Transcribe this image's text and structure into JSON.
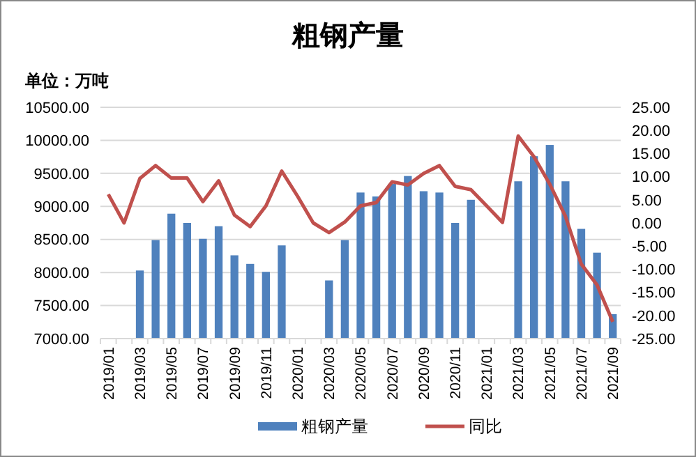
{
  "chart_data": {
    "type": "bar",
    "title": "粗钢产量",
    "subtitle": "单位：万吨",
    "categories": [
      "2019/01",
      null,
      "2019/03",
      null,
      "2019/05",
      null,
      "2019/07",
      null,
      "2019/09",
      null,
      "2019/11",
      null,
      "2020/01",
      null,
      "2020/03",
      null,
      "2020/05",
      null,
      "2020/07",
      null,
      "2020/09",
      null,
      "2020/11",
      null,
      "2021/01",
      null,
      "2021/03",
      null,
      "2021/05",
      null,
      "2021/07",
      null,
      "2021/09"
    ],
    "series": [
      {
        "name": "粗钢产量",
        "color": "#4f81bd",
        "values": [
          null,
          null,
          8030,
          8490,
          8890,
          8750,
          8510,
          8700,
          8260,
          8130,
          8010,
          8410,
          null,
          null,
          7880,
          8490,
          9210,
          9150,
          9340,
          9460,
          9230,
          9210,
          8750,
          9100,
          null,
          null,
          9380,
          9760,
          9930,
          9380,
          8660,
          8300,
          7370
        ]
      },
      {
        "name": "同比",
        "type": "line",
        "axis": "y2",
        "color": "#c0504d",
        "values": [
          6.2,
          0,
          9.6,
          12.4,
          9.7,
          9.7,
          4.6,
          9.1,
          1.7,
          -0.8,
          3.7,
          11.2,
          5.8,
          0,
          -2.1,
          0.2,
          3.7,
          4.4,
          8.9,
          8.2,
          10.7,
          12.4,
          7.9,
          7.2,
          3.7,
          0.1,
          18.8,
          14.3,
          8.4,
          1.4,
          -8.9,
          -13.4,
          -21.4
        ]
      }
    ],
    "ylim": [
      7000,
      10500
    ],
    "yticks": [
      {
        "value": 7000,
        "label": "7000.00"
      },
      {
        "value": 7500,
        "label": "7500.00"
      },
      {
        "value": 8000,
        "label": "8000.00"
      },
      {
        "value": 8500,
        "label": "8500.00"
      },
      {
        "value": 9000,
        "label": "9000.00"
      },
      {
        "value": 9500,
        "label": "9500.00"
      },
      {
        "value": 10000,
        "label": "10000.00"
      },
      {
        "value": 10500,
        "label": "10500.00"
      }
    ],
    "y2lim": [
      -25,
      25
    ],
    "y2ticks": [
      {
        "value": -25,
        "label": "-25.00"
      },
      {
        "value": -20,
        "label": "-20.00"
      },
      {
        "value": -15,
        "label": "-15.00"
      },
      {
        "value": -10,
        "label": "-10.00"
      },
      {
        "value": -5,
        "label": "-5.00"
      },
      {
        "value": 0,
        "label": "0.00"
      },
      {
        "value": 5,
        "label": "5.00"
      },
      {
        "value": 10,
        "label": "10.00"
      },
      {
        "value": 15,
        "label": "15.00"
      },
      {
        "value": 20,
        "label": "20.00"
      },
      {
        "value": 25,
        "label": "25.00"
      }
    ],
    "grid": "y",
    "legend": "bottom"
  }
}
